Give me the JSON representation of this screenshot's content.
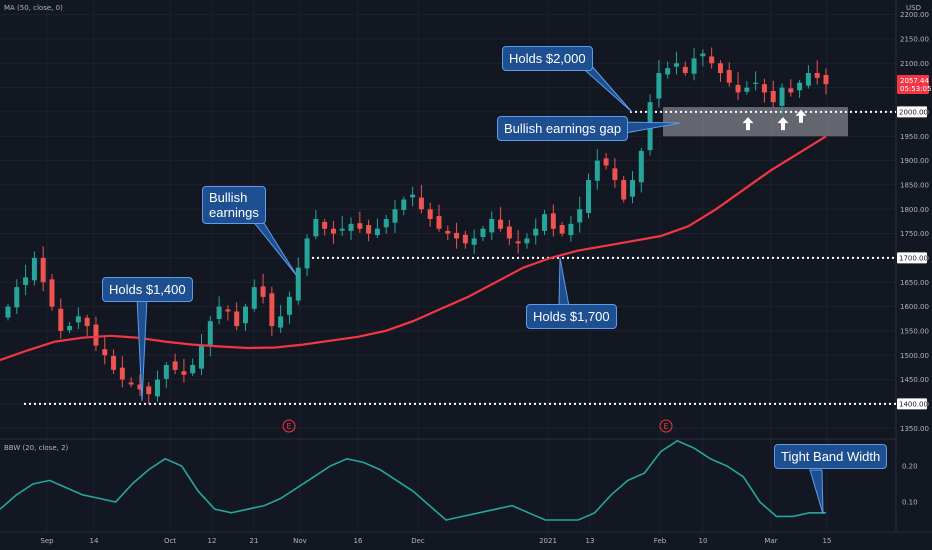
{
  "header": {
    "indicator_top": "MA (50, close, 0)",
    "indicator_bottom": "BBW (20, close, 2)",
    "currency": "USD"
  },
  "price_tag": {
    "value": "2057.44",
    "countdown": "05:53:05",
    "color": "#f23645"
  },
  "level_tags": [
    "2000.00",
    "1700.00",
    "1400.00"
  ],
  "callouts": {
    "holds_2000": "Holds $2,000",
    "gap": "Bullish earnings gap",
    "bullish_earnings_1": "Bullish",
    "bullish_earnings_2": "earnings",
    "holds_1400": "Holds $1,400",
    "holds_1700": "Holds $1,700",
    "tight_band": "Tight Band Width"
  },
  "earnings_marker": "E",
  "colors": {
    "up": "#26a69a",
    "down": "#ef5350",
    "ma": "#f23645",
    "bbw": "#26a69a",
    "callout": "#1d4f91"
  },
  "chart_data": [
    {
      "type": "candlestick",
      "y_scale": {
        "range": [
          1330,
          2230
        ],
        "ticks": [
          1350,
          1400,
          1450,
          1500,
          1550,
          1600,
          1650,
          1700,
          1750,
          1800,
          1850,
          1900,
          1950,
          2000,
          2050,
          2100,
          2150,
          2200
        ]
      },
      "x_axis_labels": [
        "Sep",
        "14",
        "Oct",
        "12",
        "21",
        "Nov",
        "16",
        "Dec",
        "2021",
        "13",
        "Feb",
        "10",
        "Mar",
        "15"
      ],
      "moving_average": {
        "period": 50,
        "values": [
          1490,
          1510,
          1528,
          1536,
          1540,
          1536,
          1528,
          1522,
          1518,
          1515,
          1516,
          1522,
          1530,
          1538,
          1550,
          1570,
          1595,
          1620,
          1650,
          1680,
          1700,
          1715,
          1725,
          1735,
          1745,
          1765,
          1800,
          1840,
          1880,
          1915,
          1950
        ]
      },
      "horizontal_levels": [
        2000,
        1700,
        1400
      ],
      "gap_zone": [
        1950,
        2010
      ],
      "arrows": [
        1975,
        1975,
        1990
      ],
      "close_series": [
        1600,
        1640,
        1660,
        1700,
        1650,
        1600,
        1550,
        1560,
        1580,
        1560,
        1520,
        1500,
        1470,
        1450,
        1440,
        1430,
        1420,
        1450,
        1480,
        1470,
        1460,
        1480,
        1520,
        1570,
        1600,
        1590,
        1560,
        1600,
        1640,
        1620,
        1560,
        1580,
        1620,
        1680,
        1740,
        1780,
        1760,
        1750,
        1760,
        1770,
        1760,
        1750,
        1760,
        1780,
        1800,
        1820,
        1830,
        1800,
        1780,
        1760,
        1750,
        1740,
        1730,
        1740,
        1760,
        1780,
        1760,
        1740,
        1730,
        1740,
        1760,
        1790,
        1760,
        1750,
        1770,
        1800,
        1860,
        1900,
        1890,
        1860,
        1820,
        1860,
        1920,
        2020,
        2080,
        2090,
        2100,
        2080,
        2110,
        2120,
        2100,
        2080,
        2060,
        2040,
        2050,
        2060,
        2040,
        2020,
        2050,
        2040,
        2060,
        2080,
        2070,
        2057
      ],
      "events": [
        "E",
        "E"
      ]
    },
    {
      "type": "line",
      "name": "BBW (20, close, 2)",
      "y_ticks": [
        0.1,
        0.2
      ],
      "values": [
        0.08,
        0.12,
        0.15,
        0.16,
        0.14,
        0.12,
        0.11,
        0.1,
        0.15,
        0.19,
        0.22,
        0.2,
        0.13,
        0.08,
        0.07,
        0.08,
        0.09,
        0.11,
        0.14,
        0.17,
        0.2,
        0.22,
        0.21,
        0.19,
        0.16,
        0.13,
        0.09,
        0.05,
        0.06,
        0.07,
        0.08,
        0.09,
        0.07,
        0.05,
        0.05,
        0.05,
        0.07,
        0.12,
        0.16,
        0.18,
        0.24,
        0.27,
        0.25,
        0.22,
        0.2,
        0.17,
        0.1,
        0.06,
        0.06,
        0.07,
        0.07
      ]
    }
  ]
}
